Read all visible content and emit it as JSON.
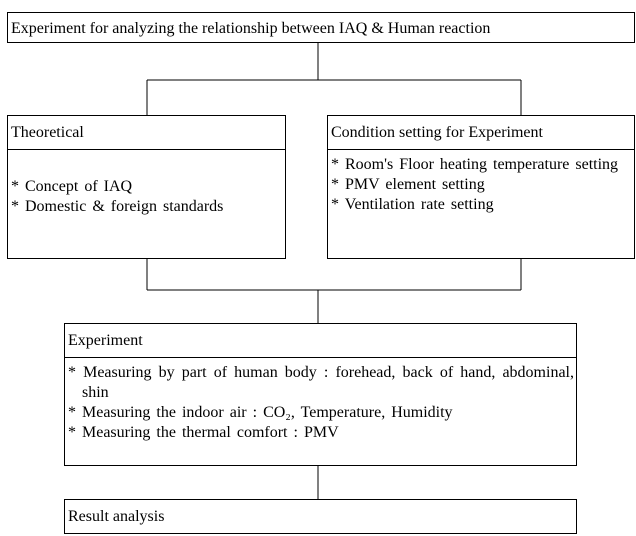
{
  "top": {
    "title": "Experiment for analyzing the relationship between IAQ & Human reaction"
  },
  "theoretical": {
    "title": "Theoretical",
    "items": [
      "* Concept of IAQ",
      "* Domestic & foreign standards"
    ]
  },
  "condition": {
    "title": "Condition setting for Experiment",
    "items": [
      "* Room's Floor heating temperature setting",
      "* PMV element setting",
      "* Ventilation rate setting"
    ]
  },
  "experiment": {
    "title": "Experiment",
    "items": [
      "* Measuring by part of human body : forehead, back of hand, abdominal, shin",
      "* Measuring the indoor air : CO₂, Temperature, Humidity",
      "* Measuring the thermal comfort : PMV"
    ]
  },
  "result": {
    "title": "Result analysis"
  }
}
